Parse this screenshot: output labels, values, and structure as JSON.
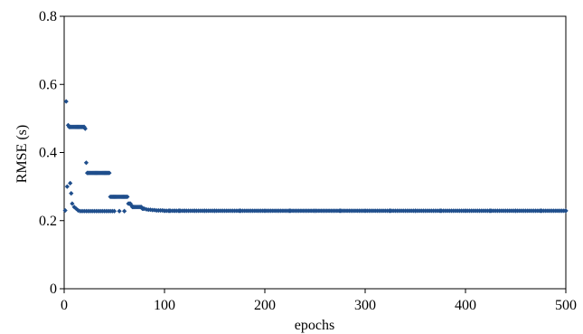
{
  "chart_data": {
    "type": "scatter",
    "xlabel": "epochs",
    "ylabel": "RMSE (s)",
    "xlim": [
      0,
      500
    ],
    "ylim": [
      0,
      0.8
    ],
    "xticks": [
      0,
      100,
      200,
      300,
      400,
      500
    ],
    "yticks": [
      0,
      0.2,
      0.4,
      0.6,
      0.8
    ],
    "xtick_labels": [
      "0",
      "100",
      "200",
      "300",
      "400",
      "500"
    ],
    "ytick_labels": [
      "0",
      "0.2",
      "0.4",
      "0.6",
      "0.8"
    ],
    "grid": false,
    "legend": "none",
    "marker_color": "#1f4e8c",
    "series": [
      {
        "x": [
          1,
          2,
          3,
          4,
          5,
          6,
          7,
          8,
          9,
          10,
          11,
          12,
          13,
          14,
          15,
          16,
          17,
          18,
          19,
          20,
          21,
          22,
          23,
          24,
          25,
          26,
          27,
          28,
          29,
          30,
          31,
          32,
          33,
          34,
          35,
          36,
          37,
          38,
          39,
          40,
          41,
          42,
          43,
          44,
          45,
          46,
          47,
          48,
          49,
          50,
          51,
          52,
          53,
          54,
          55,
          56,
          57,
          58,
          59,
          60,
          61,
          62,
          63,
          64,
          65,
          66,
          67,
          68,
          69,
          70,
          71,
          72,
          73,
          74,
          75,
          76,
          77,
          78,
          79,
          80,
          82,
          84,
          86,
          88,
          90,
          92,
          94,
          96,
          98,
          100,
          105,
          110,
          115,
          120,
          130,
          140,
          150,
          175,
          200,
          225,
          250,
          275,
          300,
          325,
          350,
          375,
          400,
          425,
          450,
          475,
          500,
          6,
          7,
          8,
          10,
          12,
          14,
          16,
          18,
          20,
          22,
          24,
          26,
          28,
          30,
          32,
          34,
          36,
          38,
          40,
          42,
          44,
          46,
          48,
          50,
          55,
          60
        ],
        "y": [
          0.23,
          0.55,
          0.3,
          0.48,
          0.475,
          0.475,
          0.475,
          0.475,
          0.475,
          0.475,
          0.475,
          0.475,
          0.475,
          0.475,
          0.475,
          0.475,
          0.475,
          0.475,
          0.475,
          0.475,
          0.47,
          0.37,
          0.34,
          0.34,
          0.34,
          0.34,
          0.34,
          0.34,
          0.34,
          0.34,
          0.34,
          0.34,
          0.34,
          0.34,
          0.34,
          0.34,
          0.34,
          0.34,
          0.34,
          0.34,
          0.34,
          0.34,
          0.34,
          0.34,
          0.34,
          0.27,
          0.27,
          0.27,
          0.27,
          0.27,
          0.27,
          0.27,
          0.27,
          0.27,
          0.27,
          0.27,
          0.27,
          0.27,
          0.27,
          0.27,
          0.27,
          0.27,
          0.27,
          0.25,
          0.25,
          0.25,
          0.245,
          0.24,
          0.24,
          0.24,
          0.24,
          0.24,
          0.24,
          0.24,
          0.24,
          0.24,
          0.24,
          0.235,
          0.235,
          0.235,
          0.233,
          0.232,
          0.232,
          0.231,
          0.231,
          0.23,
          0.23,
          0.23,
          0.23,
          0.229,
          0.229,
          0.229,
          0.229,
          0.229,
          0.229,
          0.229,
          0.229,
          0.229,
          0.229,
          0.229,
          0.229,
          0.229,
          0.229,
          0.229,
          0.229,
          0.229,
          0.229,
          0.229,
          0.229,
          0.229,
          0.229,
          0.31,
          0.28,
          0.25,
          0.24,
          0.235,
          0.23,
          0.228,
          0.228,
          0.228,
          0.228,
          0.228,
          0.228,
          0.228,
          0.228,
          0.228,
          0.228,
          0.228,
          0.228,
          0.228,
          0.228,
          0.228,
          0.228,
          0.228,
          0.228,
          0.228,
          0.228
        ]
      }
    ]
  }
}
